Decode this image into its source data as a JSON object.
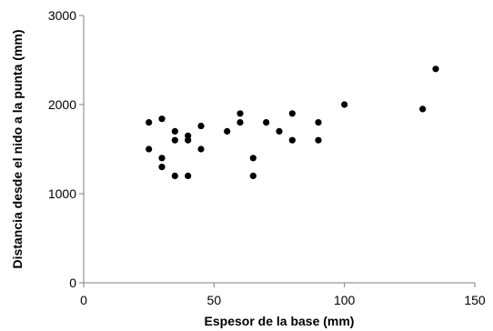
{
  "chart_data": {
    "type": "scatter",
    "title": "",
    "xlabel": "Espesor de la base (mm)",
    "ylabel": "Distancia desde el nido a la punta (mm)",
    "xlim": [
      0,
      150
    ],
    "ylim": [
      0,
      3000
    ],
    "x_ticks": [
      "0",
      "50",
      "100",
      "150"
    ],
    "y_ticks": [
      "0",
      "1000",
      "2000",
      "3000"
    ],
    "grid": false,
    "legend": "none",
    "marker_color": "#000000",
    "points": [
      {
        "x": 25,
        "y": 1800
      },
      {
        "x": 25,
        "y": 1500
      },
      {
        "x": 30,
        "y": 1840
      },
      {
        "x": 30,
        "y": 1400
      },
      {
        "x": 30,
        "y": 1300
      },
      {
        "x": 35,
        "y": 1700
      },
      {
        "x": 35,
        "y": 1600
      },
      {
        "x": 35,
        "y": 1200
      },
      {
        "x": 40,
        "y": 1650
      },
      {
        "x": 40,
        "y": 1600
      },
      {
        "x": 40,
        "y": 1200
      },
      {
        "x": 45,
        "y": 1760
      },
      {
        "x": 45,
        "y": 1500
      },
      {
        "x": 55,
        "y": 1700
      },
      {
        "x": 60,
        "y": 1900
      },
      {
        "x": 60,
        "y": 1800
      },
      {
        "x": 65,
        "y": 1400
      },
      {
        "x": 65,
        "y": 1200
      },
      {
        "x": 70,
        "y": 1800
      },
      {
        "x": 75,
        "y": 1700
      },
      {
        "x": 80,
        "y": 1900
      },
      {
        "x": 80,
        "y": 1600
      },
      {
        "x": 90,
        "y": 1800
      },
      {
        "x": 90,
        "y": 1600
      },
      {
        "x": 100,
        "y": 2000
      },
      {
        "x": 130,
        "y": 1950
      },
      {
        "x": 135,
        "y": 2400
      }
    ]
  }
}
